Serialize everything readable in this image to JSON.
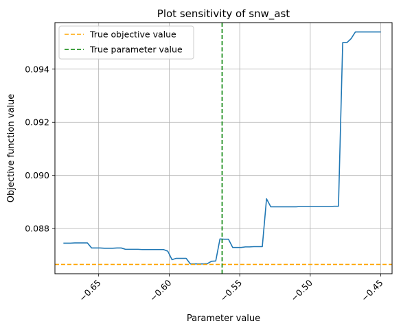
{
  "chart_data": {
    "type": "line",
    "title": "Plot sensitivity of snw_ast",
    "xlabel": "Parameter value",
    "ylabel": "Objective function value",
    "xlim": [
      -0.681,
      -0.442
    ],
    "ylim": [
      0.0863,
      0.09575
    ],
    "xticks": [
      -0.65,
      -0.6,
      -0.55,
      -0.5,
      -0.45
    ],
    "xtick_labels": [
      "−0.65",
      "−0.60",
      "−0.55",
      "−0.50",
      "−0.45"
    ],
    "yticks": [
      0.088,
      0.09,
      0.092,
      0.094
    ],
    "ytick_labels": [
      "0.088",
      "0.090",
      "0.092",
      "0.094"
    ],
    "grid": true,
    "legend_position": "top-left",
    "series": [
      {
        "color": "#1f77b4",
        "x": [
          -0.675,
          -0.67,
          -0.667,
          -0.664,
          -0.661,
          -0.658,
          -0.655,
          -0.652,
          -0.649,
          -0.646,
          -0.643,
          -0.64,
          -0.637,
          -0.634,
          -0.631,
          -0.628,
          -0.625,
          -0.622,
          -0.619,
          -0.616,
          -0.613,
          -0.61,
          -0.607,
          -0.604,
          -0.601,
          -0.598,
          -0.595,
          -0.593,
          -0.591,
          -0.588,
          -0.585,
          -0.582,
          -0.579,
          -0.576,
          -0.573,
          -0.57,
          -0.567,
          -0.564,
          -0.561,
          -0.558,
          -0.555,
          -0.552,
          -0.549,
          -0.546,
          -0.543,
          -0.54,
          -0.537,
          -0.534,
          -0.531,
          -0.528,
          -0.525,
          -0.522,
          -0.519,
          -0.516,
          -0.513,
          -0.51,
          -0.507,
          -0.504,
          -0.501,
          -0.498,
          -0.495,
          -0.492,
          -0.489,
          -0.486,
          -0.483,
          -0.48,
          -0.477,
          -0.474,
          -0.471,
          -0.468,
          -0.465,
          -0.462,
          -0.459,
          -0.456,
          -0.453,
          -0.45
        ],
        "y": [
          0.08745,
          0.08745,
          0.08746,
          0.08746,
          0.08746,
          0.08746,
          0.08727,
          0.08727,
          0.08727,
          0.08726,
          0.08726,
          0.08726,
          0.08727,
          0.08727,
          0.08722,
          0.08722,
          0.08722,
          0.08722,
          0.08721,
          0.08721,
          0.08721,
          0.08721,
          0.08721,
          0.08721,
          0.08715,
          0.08683,
          0.08688,
          0.08688,
          0.08688,
          0.08688,
          0.08667,
          0.08667,
          0.08667,
          0.08667,
          0.08668,
          0.08677,
          0.08678,
          0.08761,
          0.0876,
          0.0876,
          0.08729,
          0.08729,
          0.08729,
          0.08731,
          0.08731,
          0.08732,
          0.08732,
          0.08732,
          0.08912,
          0.08882,
          0.08882,
          0.08882,
          0.08882,
          0.08882,
          0.08882,
          0.08882,
          0.08883,
          0.08883,
          0.08883,
          0.08883,
          0.08883,
          0.08883,
          0.08883,
          0.08883,
          0.08884,
          0.08884,
          0.095,
          0.095,
          0.09515,
          0.0954,
          0.0954,
          0.0954,
          0.0954,
          0.0954,
          0.0954,
          0.0954
        ]
      }
    ],
    "hlines": [
      {
        "label": "True objective value",
        "y": 0.08665,
        "color": "#ffa500",
        "style": "dashed"
      }
    ],
    "vlines": [
      {
        "label": "True parameter value",
        "x": -0.5625,
        "color": "#008000",
        "style": "dashed"
      }
    ]
  }
}
